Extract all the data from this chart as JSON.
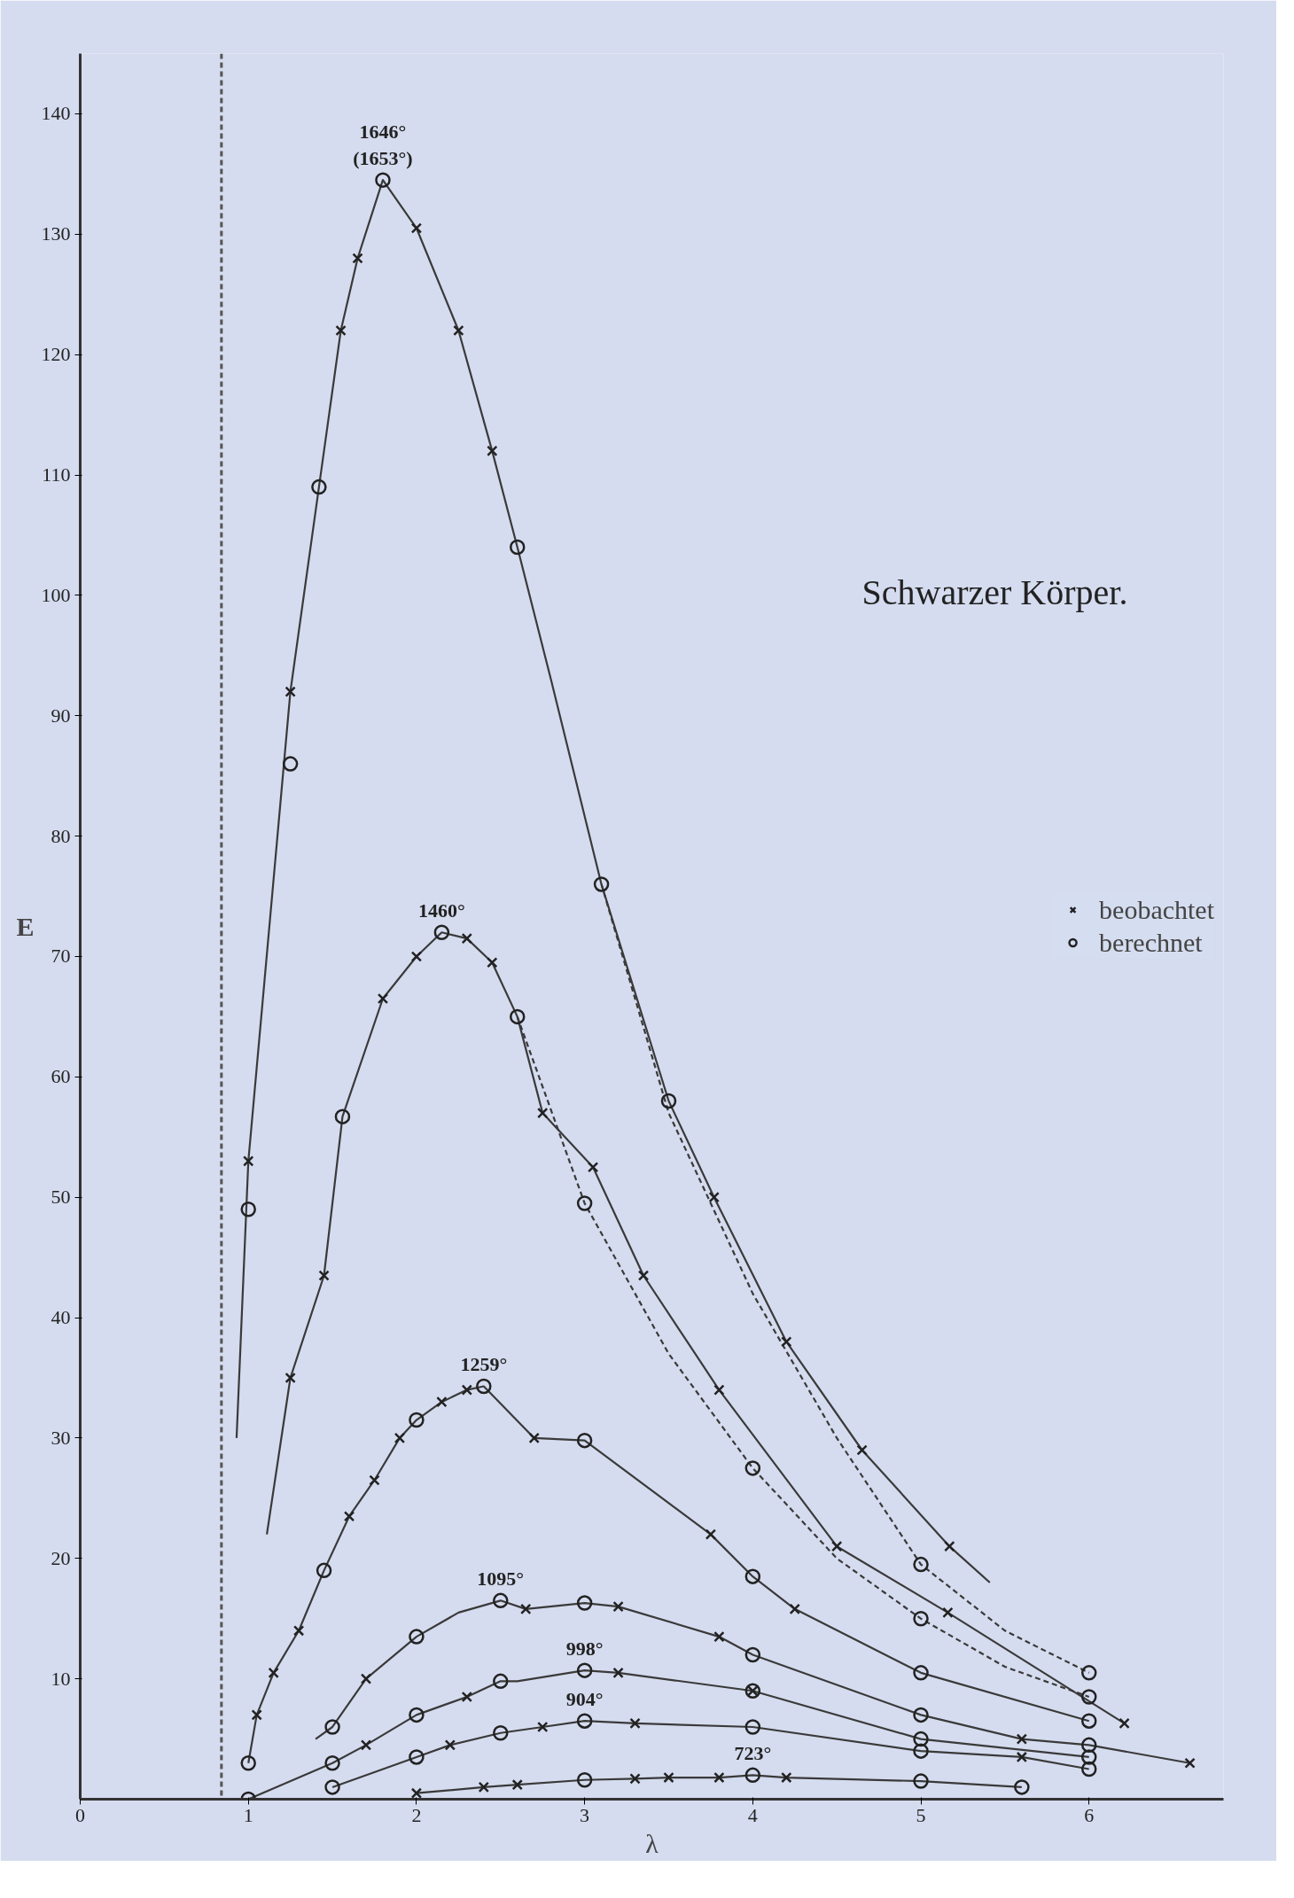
{
  "chart_data": {
    "type": "line",
    "title": "Schwarzer Körper.",
    "xlabel": "λ",
    "ylabel": "E",
    "xlim": [
      0,
      6.8
    ],
    "ylim": [
      0,
      145
    ],
    "xticks": [
      0,
      1,
      2,
      3,
      4,
      5,
      6
    ],
    "yticks": [
      10,
      20,
      30,
      40,
      50,
      60,
      70,
      80,
      90,
      100,
      110,
      120,
      130,
      140
    ],
    "grid": false,
    "legend": "right",
    "line_style": "solid",
    "marker": "none",
    "ref_lines": [
      {
        "axis": "x",
        "value": 0.84,
        "line_style": "dashed",
        "color": "#555555"
      }
    ],
    "series": [
      {
        "name": "1646°\n(1653°)",
        "color": "#3a3a3a",
        "x": [
          0.93,
          1.0,
          1.25,
          1.42,
          1.55,
          1.65,
          1.8,
          2.0,
          2.25,
          2.45,
          2.6,
          2.8,
          3.1,
          3.5,
          3.77,
          4.2,
          4.65,
          5.17,
          5.41
        ],
        "values": [
          30,
          53,
          92,
          109,
          122,
          128,
          134.5,
          130.5,
          122,
          112,
          104,
          93,
          76,
          58,
          50,
          38,
          29,
          21,
          18
        ]
      },
      {
        "color": "#3a3a3a",
        "line_style": "dashed",
        "x": [
          3.1,
          3.5,
          4.0,
          4.5,
          5.0,
          5.5,
          6.0
        ],
        "values": [
          76,
          57,
          42,
          30,
          19.5,
          14,
          10.5
        ]
      },
      {
        "name": "1460°",
        "color": "#3a3a3a",
        "x": [
          1.11,
          1.25,
          1.45,
          1.56,
          1.8,
          2.0,
          2.15,
          2.3,
          2.45,
          2.6,
          2.75,
          3.05,
          3.35,
          3.8,
          4.5,
          5.16,
          6.21
        ],
        "values": [
          22,
          35,
          43.5,
          56.7,
          66.5,
          70,
          72,
          71.5,
          69.5,
          65,
          57,
          52.5,
          43.5,
          34,
          21,
          15.5,
          6.3
        ]
      },
      {
        "color": "#3a3a3a",
        "line_style": "dashed",
        "x": [
          2.6,
          3.0,
          3.5,
          4.0,
          4.5,
          5.0,
          5.5,
          6.0
        ],
        "values": [
          65,
          49.5,
          37,
          27.5,
          20,
          15,
          11,
          8.5
        ]
      },
      {
        "name": "1259°",
        "color": "#3a3a3a",
        "x": [
          1.0,
          1.05,
          1.15,
          1.3,
          1.45,
          1.6,
          1.75,
          1.9,
          2.0,
          2.15,
          2.3,
          2.4,
          2.7,
          3.0,
          3.75,
          4.0,
          4.25,
          5.0,
          6.0
        ],
        "values": [
          3,
          7,
          10.5,
          14,
          19,
          23.5,
          26.5,
          30,
          31.5,
          33,
          34,
          34.3,
          30,
          29.8,
          22,
          18.5,
          15.8,
          10.5,
          6.5
        ]
      },
      {
        "name": "1095°",
        "color": "#3a3a3a",
        "x": [
          1.4,
          1.5,
          1.7,
          2.0,
          2.25,
          2.5,
          2.65,
          3.0,
          3.2,
          3.8,
          4.0,
          5.0,
          5.6,
          6.0,
          6.6
        ],
        "values": [
          5,
          6,
          10,
          13.5,
          15.5,
          16.5,
          15.8,
          16.3,
          16,
          13.5,
          12,
          7,
          5,
          4.5,
          3
        ]
      },
      {
        "name": "998°",
        "color": "#3a3a3a",
        "x": [
          1.0,
          1.5,
          1.7,
          2.0,
          2.3,
          2.5,
          2.6,
          3.0,
          3.2,
          4.0,
          5.0,
          6.0
        ],
        "values": [
          0,
          3,
          4.5,
          7,
          8.5,
          9.8,
          9.8,
          10.7,
          10.5,
          9,
          5,
          3.5
        ]
      },
      {
        "name": "904°",
        "color": "#3a3a3a",
        "x": [
          1.5,
          2.0,
          2.2,
          2.5,
          2.75,
          3.0,
          3.3,
          4.0,
          5.0,
          5.6,
          6.0
        ],
        "values": [
          1,
          3.5,
          4.5,
          5.5,
          6,
          6.5,
          6.3,
          6,
          4,
          3.5,
          2.5
        ]
      },
      {
        "name": "723°",
        "color": "#3a3a3a",
        "x": [
          2.0,
          2.4,
          2.6,
          3.0,
          3.3,
          3.5,
          3.8,
          4.0,
          4.2,
          5.0,
          5.6
        ],
        "values": [
          0.5,
          1,
          1.2,
          1.6,
          1.7,
          1.8,
          1.8,
          2,
          1.8,
          1.5,
          1
        ]
      },
      {
        "type": "scatter",
        "name": "beobachtet",
        "marker": "cross",
        "color": "#222222",
        "x": [
          1.0,
          1.25,
          1.55,
          1.65,
          2.0,
          2.25,
          2.45,
          3.77,
          4.2,
          4.65,
          5.17,
          1.25,
          1.45,
          1.8,
          2.0,
          2.3,
          2.45,
          2.75,
          3.05,
          3.35,
          3.8,
          4.5,
          5.16,
          6.21,
          1.05,
          1.15,
          1.3,
          1.6,
          1.75,
          1.9,
          2.15,
          2.3,
          2.7,
          3.75,
          4.25,
          1.7,
          2.65,
          3.2,
          3.8,
          5.6,
          6.6,
          1.7,
          2.3,
          3.2,
          4.0,
          2.2,
          2.75,
          3.3,
          5.6,
          2.0,
          2.4,
          2.6,
          3.3,
          3.5,
          3.8,
          4.2
        ],
        "values": [
          53,
          92,
          122,
          128,
          130.5,
          122,
          112,
          50,
          38,
          29,
          21,
          35,
          43.5,
          66.5,
          70,
          71.5,
          69.5,
          57,
          52.5,
          43.5,
          34,
          21,
          15.5,
          6.3,
          7,
          10.5,
          14,
          23.5,
          26.5,
          30,
          33,
          34,
          30,
          22,
          15.8,
          10,
          15.8,
          16,
          13.5,
          5,
          3,
          4.5,
          8.5,
          10.5,
          9,
          4.5,
          6,
          6.3,
          3.5,
          0.5,
          1,
          1.2,
          1.7,
          1.8,
          1.8,
          1.8
        ]
      },
      {
        "type": "scatter",
        "name": "berechnet",
        "marker": "circle",
        "color": "#222222",
        "x": [
          1.0,
          1.25,
          1.42,
          1.8,
          2.6,
          3.1,
          3.5,
          5.0,
          6.0,
          1.56,
          2.15,
          2.6,
          3.0,
          4.0,
          5.0,
          6.0,
          1.0,
          1.45,
          2.0,
          2.4,
          3.0,
          4.0,
          5.0,
          6.0,
          1.5,
          2.0,
          2.5,
          3.0,
          4.0,
          5.0,
          6.0,
          1.0,
          1.5,
          2.0,
          2.5,
          3.0,
          4.0,
          5.0,
          6.0,
          1.5,
          2.0,
          2.5,
          3.0,
          4.0,
          5.0,
          6.0,
          3.0,
          4.0,
          5.0,
          5.6
        ],
        "values": [
          49,
          86,
          109,
          134.5,
          104,
          76,
          58,
          19.5,
          10.5,
          56.7,
          72,
          65,
          49.5,
          27.5,
          15,
          8.5,
          3,
          19,
          31.5,
          34.3,
          29.8,
          18.5,
          10.5,
          6.5,
          6,
          13.5,
          16.5,
          16.3,
          12,
          7,
          4.5,
          0,
          3,
          7,
          9.8,
          10.7,
          9,
          5,
          3.5,
          1,
          3.5,
          5.5,
          6.5,
          6,
          4,
          2.5,
          1.6,
          2,
          1.5,
          1
        ]
      }
    ]
  }
}
